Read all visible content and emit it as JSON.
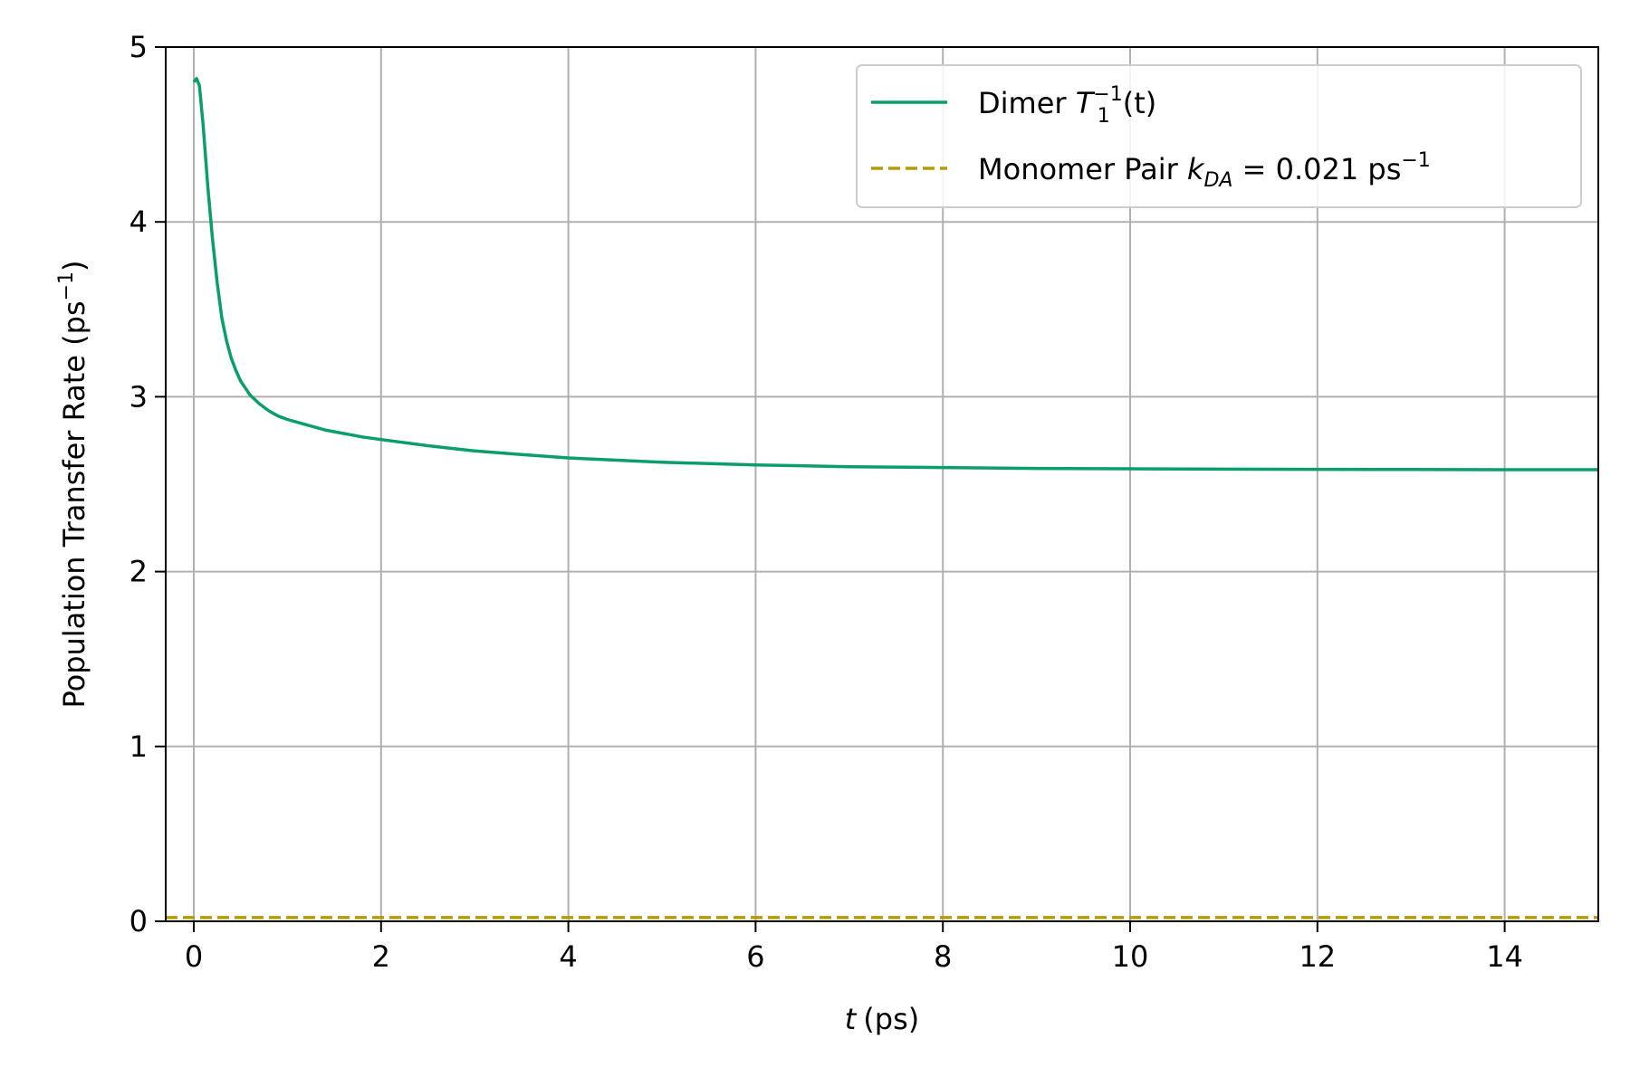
{
  "chart_data": {
    "type": "line",
    "title": "",
    "xlabel": {
      "var": "t",
      "unit": "(ps)"
    },
    "ylabel": {
      "pre": "Population Transfer Rate (ps",
      "sup": "−1",
      "post": ")"
    },
    "xlim": [
      -0.3,
      15
    ],
    "ylim": [
      0,
      5
    ],
    "xticks": [
      0,
      2,
      4,
      6,
      8,
      10,
      12,
      14
    ],
    "yticks": [
      0,
      1,
      2,
      3,
      4,
      5
    ],
    "grid": true,
    "legend_position": "top-right",
    "series": [
      {
        "name": "Dimer T1−1(t)",
        "legend": {
          "pre": "Dimer ",
          "var": "T",
          "sub": "1",
          "sup": "−1",
          "post": "(t)"
        },
        "color": "#0a9e6e",
        "style": "solid",
        "x": [
          0,
          0.03,
          0.06,
          0.1,
          0.15,
          0.2,
          0.25,
          0.3,
          0.35,
          0.4,
          0.45,
          0.5,
          0.55,
          0.6,
          0.7,
          0.8,
          0.9,
          1.0,
          1.2,
          1.4,
          1.6,
          1.8,
          2.0,
          2.5,
          3.0,
          3.5,
          4.0,
          5.0,
          6.0,
          7.0,
          8.0,
          9.0,
          10.0,
          11.0,
          12.0,
          13.0,
          14.0,
          15.0
        ],
        "y": [
          4.8,
          4.82,
          4.78,
          4.55,
          4.2,
          3.9,
          3.65,
          3.45,
          3.32,
          3.22,
          3.15,
          3.09,
          3.05,
          3.01,
          2.96,
          2.92,
          2.89,
          2.87,
          2.84,
          2.81,
          2.79,
          2.77,
          2.755,
          2.72,
          2.69,
          2.67,
          2.65,
          2.625,
          2.61,
          2.6,
          2.595,
          2.59,
          2.588,
          2.586,
          2.585,
          2.584,
          2.583,
          2.583
        ]
      },
      {
        "name": "Monomer Pair kDA = 0.021 ps−1",
        "legend": {
          "pre": "Monomer Pair ",
          "var": "k",
          "sub": "DA",
          "mid": " = 0.021 ps",
          "sup": "−1"
        },
        "color": "#b59a0c",
        "style": "dashed",
        "x": [
          -0.3,
          15
        ],
        "y": [
          0.021,
          0.021
        ]
      }
    ]
  }
}
